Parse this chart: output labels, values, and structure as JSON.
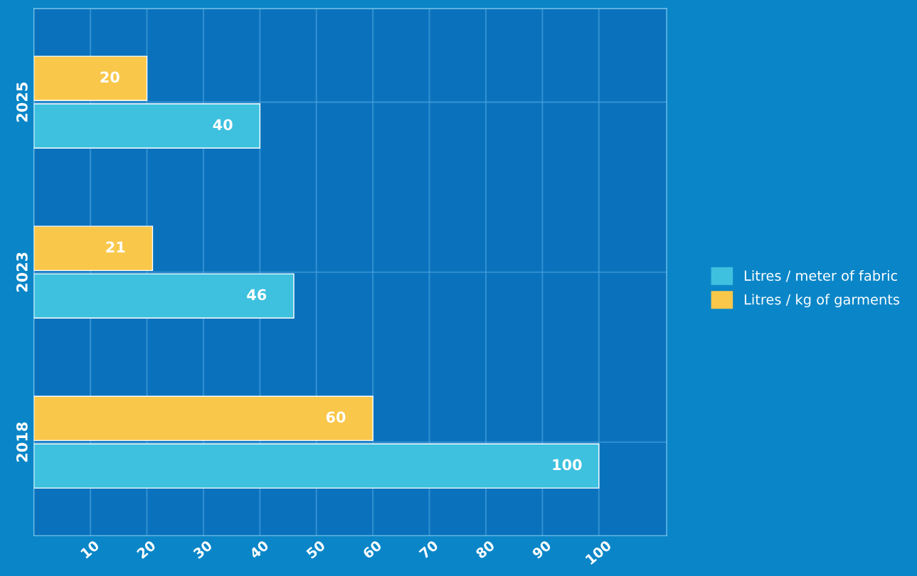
{
  "chart_data": {
    "type": "bar",
    "orientation": "horizontal",
    "categories": [
      "2025",
      "2023",
      "2018"
    ],
    "series": [
      {
        "name": "Litres / meter of fabric",
        "color": "#3ec1df",
        "values": [
          40,
          46,
          100
        ]
      },
      {
        "name": "Litres / kg of garments",
        "color": "#f9c74a",
        "values": [
          20,
          21,
          60
        ]
      }
    ],
    "xlim": [
      0,
      112
    ],
    "xticks": [
      10,
      20,
      30,
      40,
      50,
      60,
      70,
      80,
      90,
      100
    ],
    "data_labels": true,
    "grid": true,
    "legend": "right"
  }
}
